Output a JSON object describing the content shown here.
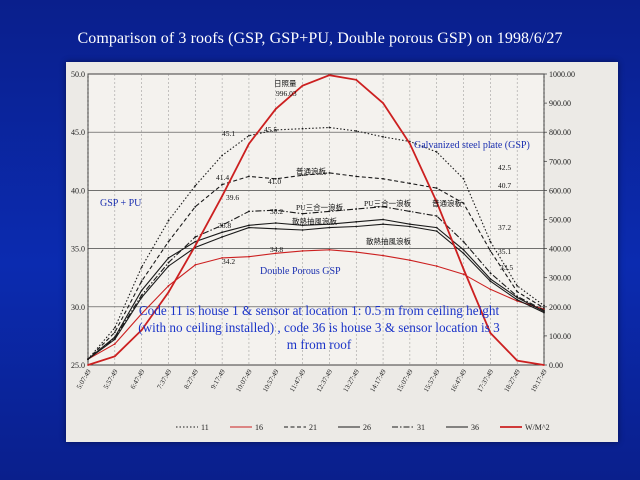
{
  "slide": {
    "title": "Comparison of 3 roofs (GSP, GSP+PU, Double porous GSP)  on 1998/6/27"
  },
  "colors": {
    "series_black": "#1a1a1a",
    "series_red": "#cc2020",
    "annotation_blue": "#1a2fb0",
    "background": "#0b2bb0"
  },
  "chart_data": {
    "type": "line",
    "x": [
      "5:07:49",
      "5:57:49",
      "6:47:49",
      "7:37:49",
      "8:27:49",
      "9:17:49",
      "10:07:49",
      "10:57:49",
      "11:47:49",
      "12:37:49",
      "13:27:49",
      "14:17:49",
      "15:07:49",
      "15:57:49",
      "16:47:49",
      "17:37:49",
      "18:27:49",
      "19:17:49"
    ],
    "y_left_lim": [
      25.0,
      50.0
    ],
    "y_left_ticks": [
      "25.0",
      "30.0",
      "35.0",
      "40.0",
      "45.0",
      "50.0"
    ],
    "y_right_lim": [
      0,
      1000
    ],
    "y_right_ticks": [
      "0.00",
      "100.00",
      "200.00",
      "300.00",
      "400.00",
      "500.00",
      "600.00",
      "700.00",
      "800.00",
      "900.00",
      "1000.00"
    ],
    "grid": true,
    "legend_position": "bottom",
    "series": [
      {
        "name": "11",
        "axis": "left",
        "style": "dotted",
        "color": "#1a1a1a",
        "values": [
          25.5,
          28.2,
          33.4,
          37.4,
          40.4,
          43.0,
          44.7,
          45.2,
          45.3,
          45.4,
          45.1,
          44.6,
          44.2,
          43.3,
          41.0,
          35.6,
          31.8,
          30.1
        ]
      },
      {
        "name": "16",
        "axis": "left",
        "style": "solid",
        "color": "#cc2020",
        "values": [
          25.5,
          26.8,
          29.4,
          31.8,
          33.6,
          34.2,
          34.3,
          34.6,
          34.8,
          34.9,
          34.7,
          34.4,
          34.0,
          33.5,
          32.8,
          31.5,
          30.5,
          29.8
        ]
      },
      {
        "name": "21",
        "axis": "left",
        "style": "dashed",
        "color": "#1a1a1a",
        "values": [
          25.5,
          27.8,
          32.2,
          35.6,
          38.6,
          40.5,
          41.2,
          41.0,
          41.3,
          41.5,
          41.2,
          41.0,
          40.6,
          40.2,
          38.9,
          34.8,
          31.3,
          29.9
        ]
      },
      {
        "name": "26",
        "axis": "left",
        "style": "solid",
        "color": "#1a1a1a",
        "values": [
          25.5,
          27.4,
          31.4,
          34.2,
          35.6,
          36.4,
          37.0,
          37.2,
          37.0,
          37.1,
          37.3,
          37.5,
          37.1,
          36.8,
          34.9,
          32.4,
          30.8,
          29.6
        ]
      },
      {
        "name": "31",
        "axis": "left",
        "style": "dash-dot",
        "color": "#1a1a1a",
        "values": [
          25.5,
          27.3,
          31.0,
          33.8,
          36.0,
          37.0,
          38.2,
          38.3,
          38.0,
          38.2,
          38.4,
          38.6,
          38.2,
          37.8,
          35.6,
          32.9,
          30.9,
          29.7
        ]
      },
      {
        "name": "36",
        "axis": "left",
        "style": "solid",
        "color": "#1a1a1a",
        "values": [
          25.5,
          27.2,
          30.8,
          33.5,
          35.1,
          36.0,
          36.8,
          36.7,
          36.6,
          36.8,
          36.9,
          37.1,
          36.9,
          36.5,
          34.6,
          32.2,
          30.6,
          29.5
        ]
      },
      {
        "name": "W/M^2",
        "axis": "right",
        "style": "solid-thick",
        "color": "#cc2020",
        "values": [
          0,
          30,
          120,
          250,
          410,
          580,
          760,
          880,
          960,
          996.03,
          980,
          900,
          760,
          560,
          330,
          110,
          15,
          0
        ]
      }
    ],
    "annotations": {
      "gsp": "Galvanized steel plate (GSP)",
      "gsp_pu": "GSP + PU",
      "double_porous": "Double Porous GSP",
      "peak_label_top": "日照量",
      "peak_value": "996.03",
      "cn_ordinary": "普通浪板",
      "cn_pu_combo": "PU三合一浪板",
      "cn_porous": "散熱抽風浪板",
      "v_45_1": "45.1",
      "v_45_5": "45.5",
      "v_41_4": "41.4",
      "v_41_0": "41.0",
      "v_39_6": "39.6",
      "v_38_2": "38.2",
      "v_36_8": "36.8",
      "v_34_2": "34.2",
      "v_34_8": "34.8",
      "v_42_5": "42.5",
      "v_40_7": "40.7",
      "v_37_2": "37.2",
      "v_35_1": "35.1",
      "v_33_5": "33.5"
    },
    "note": "Code 11 is house 1 & sensor at location 1: 0.5 m from ceiling height (with no ceiling installed) , code 36 is house 3 & sensor location is 3 m from roof"
  }
}
